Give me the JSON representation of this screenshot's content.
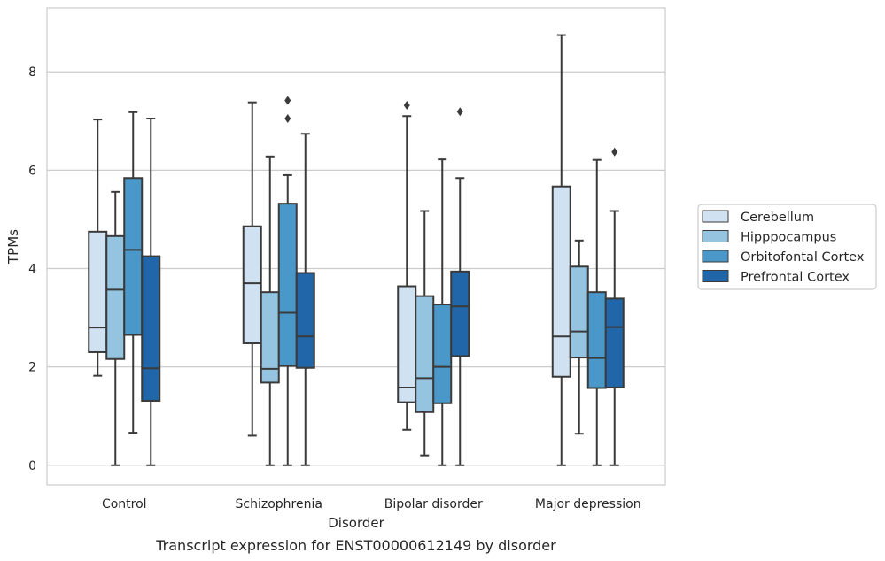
{
  "chart_data": {
    "type": "boxplot",
    "title": "",
    "caption": "Transcript expression for ENST00000612149 by disorder",
    "xlabel": "Disorder",
    "ylabel": "TPMs",
    "ylim": [
      -0.4,
      9.3
    ],
    "yticks": [
      0,
      2,
      4,
      6,
      8
    ],
    "grid": "horizontal",
    "legend_position": "right",
    "categories": [
      "Control",
      "Schizophrenia",
      "Bipolar disorder",
      "Major depression"
    ],
    "series": [
      {
        "name": "Cerebellum",
        "color": "#d0e1f2",
        "boxes": [
          {
            "low": 1.82,
            "q1": 2.3,
            "median": 2.8,
            "q3": 4.75,
            "high": 7.03,
            "outliers": []
          },
          {
            "low": 0.6,
            "q1": 2.48,
            "median": 3.7,
            "q3": 4.86,
            "high": 7.38,
            "outliers": []
          },
          {
            "low": 0.72,
            "q1": 1.28,
            "median": 1.58,
            "q3": 3.64,
            "high": 7.1,
            "outliers": [
              7.32
            ]
          },
          {
            "low": 0.0,
            "q1": 1.8,
            "median": 2.62,
            "q3": 5.67,
            "high": 8.75,
            "outliers": []
          }
        ]
      },
      {
        "name": "Hipppocampus",
        "color": "#94c4df",
        "boxes": [
          {
            "low": 0.0,
            "q1": 2.16,
            "median": 3.57,
            "q3": 4.66,
            "high": 5.56,
            "outliers": []
          },
          {
            "low": 0.0,
            "q1": 1.68,
            "median": 1.96,
            "q3": 3.52,
            "high": 6.28,
            "outliers": []
          },
          {
            "low": 0.2,
            "q1": 1.08,
            "median": 1.77,
            "q3": 3.44,
            "high": 5.17,
            "outliers": []
          },
          {
            "low": 0.64,
            "q1": 2.19,
            "median": 2.72,
            "q3": 4.04,
            "high": 4.57,
            "outliers": []
          }
        ]
      },
      {
        "name": "Orbitofontal Cortex",
        "color": "#4a98c9",
        "boxes": [
          {
            "low": 0.66,
            "q1": 2.65,
            "median": 4.38,
            "q3": 5.84,
            "high": 7.18,
            "outliers": []
          },
          {
            "low": 0.0,
            "q1": 2.02,
            "median": 3.1,
            "q3": 5.32,
            "high": 5.9,
            "outliers": [
              7.05,
              7.42
            ]
          },
          {
            "low": 0.0,
            "q1": 1.26,
            "median": 2.0,
            "q3": 3.27,
            "high": 6.22,
            "outliers": []
          },
          {
            "low": 0.0,
            "q1": 1.57,
            "median": 2.18,
            "q3": 3.52,
            "high": 6.21,
            "outliers": []
          }
        ]
      },
      {
        "name": "Prefrontal Cortex",
        "color": "#2066a8",
        "boxes": [
          {
            "low": 0.0,
            "q1": 1.31,
            "median": 1.97,
            "q3": 4.25,
            "high": 7.05,
            "outliers": []
          },
          {
            "low": 0.0,
            "q1": 1.98,
            "median": 2.62,
            "q3": 3.91,
            "high": 6.74,
            "outliers": []
          },
          {
            "low": 0.0,
            "q1": 2.22,
            "median": 3.23,
            "q3": 3.94,
            "high": 5.84,
            "outliers": [
              7.19
            ]
          },
          {
            "low": 0.0,
            "q1": 1.58,
            "median": 2.81,
            "q3": 3.39,
            "high": 5.17,
            "outliers": [
              6.37
            ]
          }
        ]
      }
    ]
  }
}
